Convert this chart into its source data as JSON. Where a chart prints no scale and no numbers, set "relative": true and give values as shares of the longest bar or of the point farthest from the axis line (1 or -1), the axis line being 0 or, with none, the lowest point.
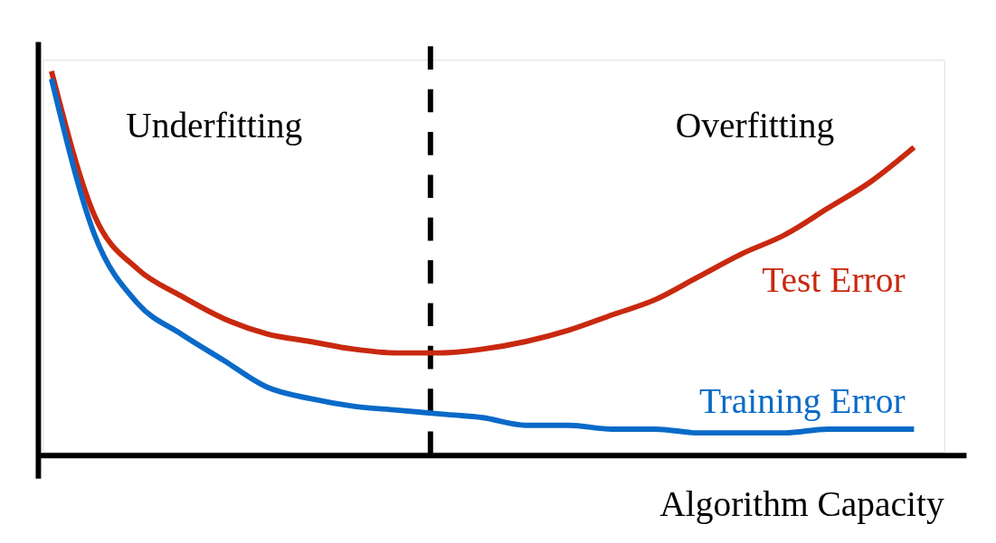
{
  "chart_data": {
    "type": "line",
    "relative": true,
    "xlabel": "Algorithm Capacity",
    "categories": [
      null,
      null,
      null,
      null,
      null,
      null,
      null,
      null,
      null,
      null,
      null,
      null,
      null,
      null,
      null,
      null,
      null,
      null,
      null,
      null,
      null
    ],
    "series": [
      {
        "name": "Test Error",
        "color": "#c8290f",
        "values": [
          1,
          0.62,
          0.48,
          0.41,
          0.35,
          0.31,
          0.29,
          0.27,
          0.26,
          0.26,
          0.27,
          0.29,
          0.32,
          0.36,
          0.4,
          0.46,
          0.52,
          0.57,
          0.64,
          0.71,
          0.8
        ]
      },
      {
        "name": "Training Error",
        "color": "#0a6ac8",
        "values": [
          0.98,
          0.57,
          0.39,
          0.31,
          0.24,
          0.17,
          0.14,
          0.12,
          0.11,
          0.1,
          0.09,
          0.07,
          0.07,
          0.06,
          0.06,
          0.05,
          0.05,
          0.05,
          0.06,
          0.06,
          0.06
        ]
      }
    ],
    "annotations": [
      "Underfitting",
      "Overfitting"
    ],
    "marker": "none",
    "line_style": "solid"
  }
}
